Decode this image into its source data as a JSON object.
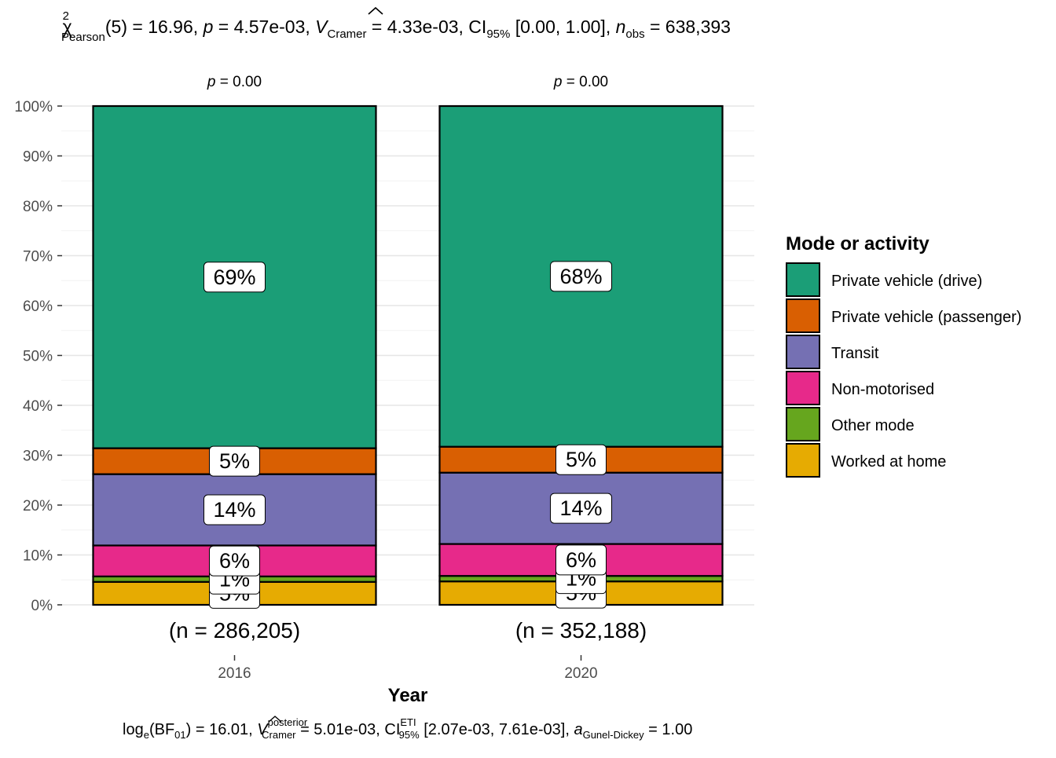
{
  "subtitle": {
    "chi_symbol": "χ",
    "chi_sup": "2",
    "chi_sub": "Pearson",
    "df": "(5)",
    "stat_value": " = 16.96, ",
    "p_label": "p",
    "p_value": " = 4.57e-03, ",
    "v_label": "V",
    "v_sub": "Cramer",
    "v_value": " = 4.33e-03, CI",
    "ci_sub": "95%",
    "ci_value": " [0.00, 1.00], ",
    "n_label": "n",
    "n_sub": "obs",
    "n_value": " = 638,393"
  },
  "caption": {
    "log_text": "log",
    "log_sub": "e",
    "bf_text": "(BF",
    "bf_sub": "01",
    "bf_value": ") = 16.01, ",
    "v_label": "V",
    "v_sup": "posterior",
    "v_sub": "Cramer",
    "v_value": " = 5.01e-03, CI",
    "ci_sup": "ETI",
    "ci_sub": "95%",
    "ci_value": " [2.07e-03, 7.61e-03], ",
    "a_label": "a",
    "a_sub": "Gunel-Dickey",
    "a_value": " = 1.00"
  },
  "chart_data": {
    "type": "bar",
    "stacked": true,
    "categories": [
      "2016",
      "2020"
    ],
    "xlabel": "Year",
    "ylabel": "",
    "ylim": [
      0,
      100
    ],
    "y_ticks": [
      "0%",
      "10%",
      "20%",
      "30%",
      "40%",
      "50%",
      "60%",
      "70%",
      "80%",
      "90%",
      "100%"
    ],
    "grid": true,
    "legend_title": "Mode or activity",
    "legend_position": "right",
    "p_labels": [
      {
        "prefix": "p",
        "value": " = 0.00"
      },
      {
        "prefix": "p",
        "value": " = 0.00"
      }
    ],
    "n_labels": [
      "(n = 286,205)",
      "(n = 352,188)"
    ],
    "series": [
      {
        "name": "Private vehicle (drive)",
        "color": "#1B9E77",
        "values": [
          68.6,
          68.3
        ],
        "labels": [
          "69%",
          "68%"
        ]
      },
      {
        "name": "Private vehicle (passenger)",
        "color": "#D95F02",
        "values": [
          5.2,
          5.2
        ],
        "labels": [
          "5%",
          "5%"
        ]
      },
      {
        "name": "Transit",
        "color": "#7570B3",
        "values": [
          14.3,
          14.3
        ],
        "labels": [
          "14%",
          "14%"
        ]
      },
      {
        "name": "Non-motorised",
        "color": "#E7298A",
        "values": [
          6.2,
          6.4
        ],
        "labels": [
          "6%",
          "6%"
        ]
      },
      {
        "name": "Other mode",
        "color": "#66A61E",
        "values": [
          1.1,
          1.1
        ],
        "labels": [
          "1%",
          "1%"
        ]
      },
      {
        "name": "Worked at home",
        "color": "#E6AB02",
        "values": [
          4.6,
          4.7
        ],
        "labels": [
          "5%",
          "5%"
        ]
      }
    ]
  }
}
